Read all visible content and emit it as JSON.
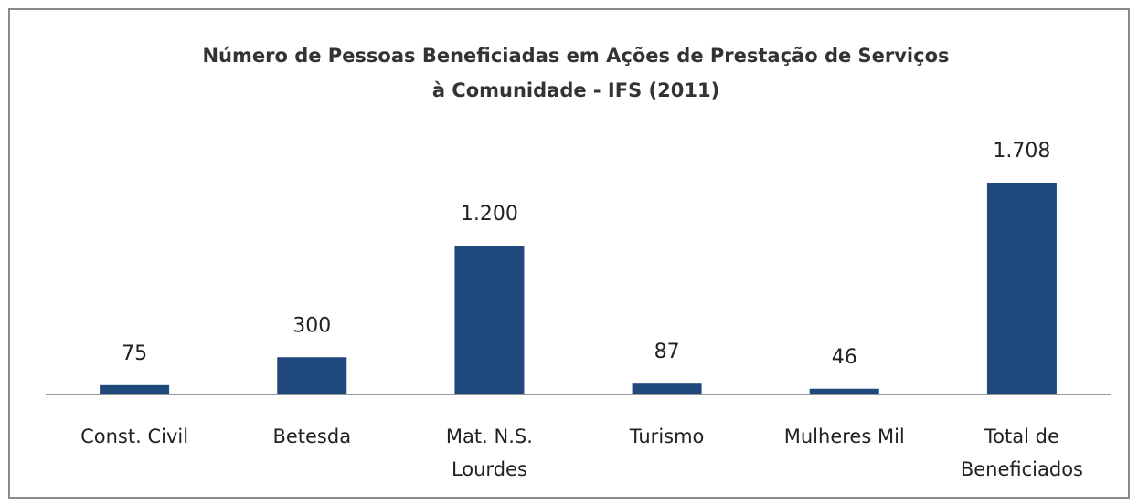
{
  "chart_data": {
    "type": "bar",
    "title": "Número de Pessoas Beneficiadas  em Ações de Prestação de Serviços\nà Comunidade - IFS (2011)",
    "categories": [
      "Const. Civil",
      "Betesda",
      "Mat. N.S.\nLourdes",
      "Turismo",
      "Mulheres Mil",
      "Total de\nBeneficiados"
    ],
    "values": [
      75,
      300,
      1200,
      87,
      46,
      1708
    ],
    "value_labels": [
      "75",
      "300",
      "1.200",
      "87",
      "46",
      "1.708"
    ],
    "color": "#1f497d"
  }
}
